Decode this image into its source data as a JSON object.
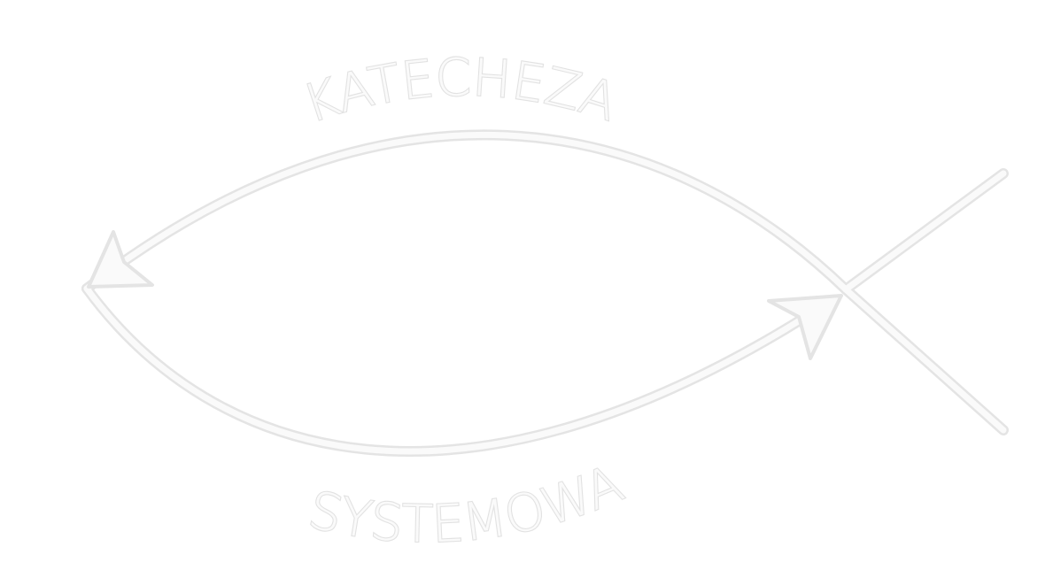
{
  "logo": {
    "top_text": "KATECHEZA",
    "bottom_text": "SYSTEMOWA",
    "icon": "ichthys-fish-icon",
    "colors": {
      "fill": "#fafafa",
      "outline": "#e4e4e4",
      "background": "#ffffff"
    }
  }
}
